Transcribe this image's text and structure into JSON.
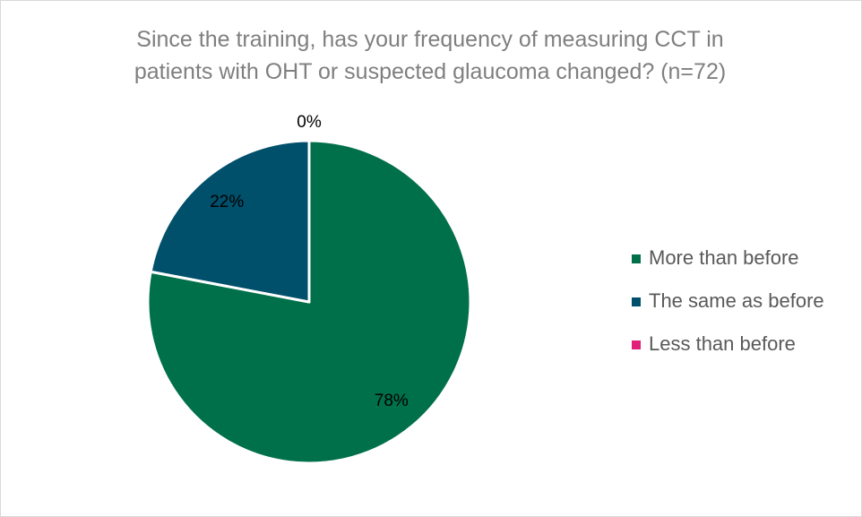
{
  "chart_data": {
    "type": "pie",
    "title": "Since the training, has your frequency of measuring CCT in patients with OHT or suspected glaucoma changed? (n=72)",
    "categories": [
      "More than before",
      "The same as before",
      "Less than before"
    ],
    "values": [
      78,
      22,
      0
    ],
    "value_labels": [
      "78%",
      "22%",
      "0%"
    ],
    "colors": [
      "#00704a",
      "#004f6b",
      "#e0217a"
    ],
    "legend": "right"
  }
}
